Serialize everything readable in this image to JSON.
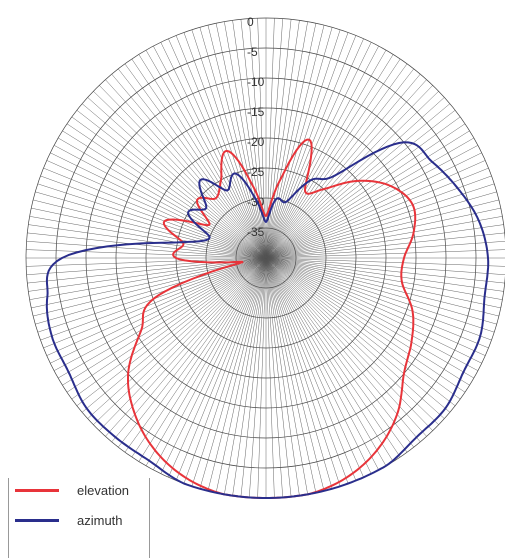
{
  "chart_data": {
    "type": "polar-line",
    "title": "",
    "radial_axis": {
      "unit": "",
      "range": [
        -40,
        0
      ],
      "tick_labels": [
        "0",
        "-5",
        "-10",
        "-15",
        "-20",
        "-25",
        "-30",
        "-35"
      ]
    },
    "grid": true,
    "legend": "bottom-left",
    "series": [
      {
        "name": "elevation",
        "color": "#e8343a",
        "angle_deg": [
          0,
          10,
          20,
          30,
          40,
          50,
          60,
          70,
          80,
          90,
          100,
          110,
          120,
          130,
          140,
          150,
          160,
          170,
          180,
          190,
          200,
          210,
          220,
          230,
          240,
          250,
          260,
          270,
          280,
          290,
          300,
          310,
          320,
          330,
          340,
          350
        ],
        "values": [
          -33,
          -27,
          -19,
          -27,
          -25,
          -20,
          -16,
          -14,
          -15,
          -17,
          -17,
          -14,
          -12,
          -10,
          -6,
          -3,
          -1,
          0,
          0,
          0,
          -1,
          -3,
          -6,
          -10,
          -16,
          -20,
          -36,
          -25,
          -26,
          -22,
          -29,
          -25,
          -27,
          -25,
          -21,
          -28
        ]
      },
      {
        "name": "azimuth",
        "color": "#2a2e8c",
        "angle_deg": [
          0,
          10,
          20,
          30,
          40,
          50,
          60,
          70,
          80,
          90,
          100,
          110,
          120,
          130,
          140,
          150,
          160,
          170,
          180,
          190,
          200,
          210,
          220,
          230,
          240,
          250,
          260,
          270,
          280,
          290,
          300,
          310,
          320,
          330,
          340,
          350
        ],
        "values": [
          -34,
          -30,
          -30,
          -25,
          -22,
          -10,
          -8,
          -6,
          -4,
          -3,
          -3,
          -2,
          -2,
          -1,
          -1,
          0,
          0,
          0,
          0,
          0,
          0,
          -1,
          -1,
          -1,
          -2,
          -2,
          -3,
          -6,
          -25,
          -30,
          -25,
          -27,
          -23,
          -27,
          -25,
          -30
        ]
      }
    ]
  }
}
